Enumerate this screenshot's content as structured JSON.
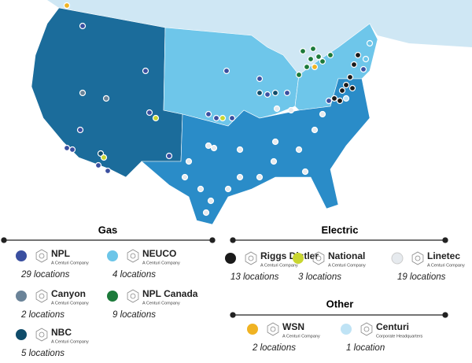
{
  "legend": {
    "gas": {
      "title": "Gas",
      "items": [
        {
          "name": "NPL",
          "subtitle": "A Centuri Company",
          "count": "29 locations",
          "color": "#3a4fa0"
        },
        {
          "name": "NEUCO",
          "subtitle": "A Centuri Company",
          "count": "4 locations",
          "color": "#6cc5e8"
        },
        {
          "name": "Canyon",
          "subtitle": "A Centuri Company",
          "count": "2 locations",
          "color": "#6a8398"
        },
        {
          "name": "NPL Canada",
          "subtitle": "A Centuri Company",
          "count": "9 locations",
          "color": "#1c7a3a"
        },
        {
          "name": "NBC",
          "subtitle": "A Centuri Company",
          "count": "5 locations",
          "color": "#0f4c6a"
        }
      ]
    },
    "electric": {
      "title": "Electric",
      "items": [
        {
          "name": "Riggs Distler",
          "subtitle": "A Centuri Company",
          "count": "13 locations",
          "color": "#1a1a1a"
        },
        {
          "name": "National",
          "subtitle": "A Centuri Company",
          "count": "3 locations",
          "color": "#c9d631"
        },
        {
          "name": "Linetec",
          "subtitle": "A Centuri Company",
          "count": "19 locations",
          "color": "#e6eaee"
        }
      ]
    },
    "other": {
      "title": "Other",
      "items": [
        {
          "name": "WSN",
          "subtitle": "A Centuri Company",
          "count": "2 locations",
          "color": "#f0b323"
        },
        {
          "name": "Centuri",
          "subtitle": "Corporate Headquarters",
          "count": "1 location",
          "color": "#bfe3f5"
        }
      ]
    }
  }
}
